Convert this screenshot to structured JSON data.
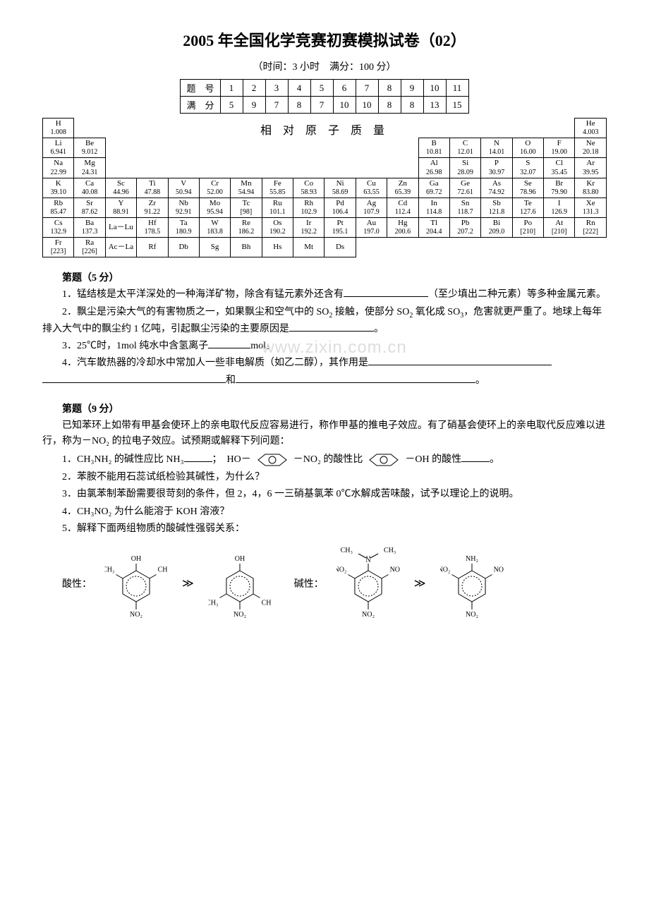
{
  "title": "2005 年全国化学竞赛初赛模拟试卷（02）",
  "subtitle": "（时间：3 小时　满分：100 分）",
  "score_table": {
    "row1": [
      "题　号",
      "1",
      "2",
      "3",
      "4",
      "5",
      "6",
      "7",
      "8",
      "9",
      "10",
      "11"
    ],
    "row2": [
      "满　分",
      "5",
      "9",
      "7",
      "8",
      "7",
      "10",
      "10",
      "8",
      "8",
      "13",
      "15"
    ]
  },
  "pt_label": "相 对 原 子 质 量",
  "periodic": {
    "r1": [
      {
        "s": "H",
        "m": "1.008"
      },
      null,
      null,
      null,
      null,
      null,
      null,
      null,
      null,
      null,
      null,
      null,
      null,
      null,
      null,
      null,
      null,
      {
        "s": "He",
        "m": "4.003"
      }
    ],
    "r2": [
      {
        "s": "Li",
        "m": "6.941"
      },
      {
        "s": "Be",
        "m": "9.012"
      },
      null,
      null,
      null,
      null,
      null,
      null,
      null,
      null,
      null,
      null,
      {
        "s": "B",
        "m": "10.81"
      },
      {
        "s": "C",
        "m": "12.01"
      },
      {
        "s": "N",
        "m": "14.01"
      },
      {
        "s": "O",
        "m": "16.00"
      },
      {
        "s": "F",
        "m": "19.00"
      },
      {
        "s": "Ne",
        "m": "20.18"
      }
    ],
    "r3": [
      {
        "s": "Na",
        "m": "22.99"
      },
      {
        "s": "Mg",
        "m": "24.31"
      },
      null,
      null,
      null,
      null,
      null,
      null,
      null,
      null,
      null,
      null,
      {
        "s": "Al",
        "m": "26.98"
      },
      {
        "s": "Si",
        "m": "28.09"
      },
      {
        "s": "P",
        "m": "30.97"
      },
      {
        "s": "S",
        "m": "32.07"
      },
      {
        "s": "Cl",
        "m": "35.45"
      },
      {
        "s": "Ar",
        "m": "39.95"
      }
    ],
    "r4": [
      {
        "s": "K",
        "m": "39.10"
      },
      {
        "s": "Ca",
        "m": "40.08"
      },
      {
        "s": "Sc",
        "m": "44.96"
      },
      {
        "s": "Ti",
        "m": "47.88"
      },
      {
        "s": "V",
        "m": "50.94"
      },
      {
        "s": "Cr",
        "m": "52.00"
      },
      {
        "s": "Mn",
        "m": "54.94"
      },
      {
        "s": "Fe",
        "m": "55.85"
      },
      {
        "s": "Co",
        "m": "58.93"
      },
      {
        "s": "Ni",
        "m": "58.69"
      },
      {
        "s": "Cu",
        "m": "63.55"
      },
      {
        "s": "Zn",
        "m": "65.39"
      },
      {
        "s": "Ga",
        "m": "69.72"
      },
      {
        "s": "Ge",
        "m": "72.61"
      },
      {
        "s": "As",
        "m": "74.92"
      },
      {
        "s": "Se",
        "m": "78.96"
      },
      {
        "s": "Br",
        "m": "79.90"
      },
      {
        "s": "Kr",
        "m": "83.80"
      }
    ],
    "r5": [
      {
        "s": "Rb",
        "m": "85.47"
      },
      {
        "s": "Sr",
        "m": "87.62"
      },
      {
        "s": "Y",
        "m": "88.91"
      },
      {
        "s": "Zr",
        "m": "91.22"
      },
      {
        "s": "Nb",
        "m": "92.91"
      },
      {
        "s": "Mo",
        "m": "95.94"
      },
      {
        "s": "Tc",
        "m": "[98]"
      },
      {
        "s": "Ru",
        "m": "101.1"
      },
      {
        "s": "Rh",
        "m": "102.9"
      },
      {
        "s": "Pd",
        "m": "106.4"
      },
      {
        "s": "Ag",
        "m": "107.9"
      },
      {
        "s": "Cd",
        "m": "112.4"
      },
      {
        "s": "In",
        "m": "114.8"
      },
      {
        "s": "Sn",
        "m": "118.7"
      },
      {
        "s": "Sb",
        "m": "121.8"
      },
      {
        "s": "Te",
        "m": "127.6"
      },
      {
        "s": "I",
        "m": "126.9"
      },
      {
        "s": "Xe",
        "m": "131.3"
      }
    ],
    "r6": [
      {
        "s": "Cs",
        "m": "132.9"
      },
      {
        "s": "Ba",
        "m": "137.3"
      },
      {
        "s": "La－Lu",
        "m": ""
      },
      {
        "s": "Hf",
        "m": "178.5"
      },
      {
        "s": "Ta",
        "m": "180.9"
      },
      {
        "s": "W",
        "m": "183.8"
      },
      {
        "s": "Re",
        "m": "186.2"
      },
      {
        "s": "Os",
        "m": "190.2"
      },
      {
        "s": "Ir",
        "m": "192.2"
      },
      {
        "s": "Pt",
        "m": "195.1"
      },
      {
        "s": "Au",
        "m": "197.0"
      },
      {
        "s": "Hg",
        "m": "200.6"
      },
      {
        "s": "Tl",
        "m": "204.4"
      },
      {
        "s": "Pb",
        "m": "207.2"
      },
      {
        "s": "Bi",
        "m": "209.0"
      },
      {
        "s": "Po",
        "m": "[210]"
      },
      {
        "s": "At",
        "m": "[210]"
      },
      {
        "s": "Rn",
        "m": "[222]"
      }
    ],
    "r7": [
      {
        "s": "Fr",
        "m": "[223]"
      },
      {
        "s": "Ra",
        "m": "[226]"
      },
      {
        "s": "Ac－La",
        "m": ""
      },
      {
        "s": "Rf",
        "m": ""
      },
      {
        "s": "Db",
        "m": ""
      },
      {
        "s": "Sg",
        "m": ""
      },
      {
        "s": "Bh",
        "m": ""
      },
      {
        "s": "Hs",
        "m": ""
      },
      {
        "s": "Mt",
        "m": ""
      },
      {
        "s": "Ds",
        "m": ""
      },
      null,
      null,
      null,
      null,
      null,
      null,
      null,
      null
    ]
  },
  "q1": {
    "header": "第题（5 分）",
    "p1a": "1．锰结核是太平洋深处的一种海洋矿物，除含有锰元素外还含有",
    "p1b": "（至少填出二种元素）等多种金属元素。",
    "p2a": "2．飘尘是污染大气的有害物质之一，如果飘尘和空气中的 SO",
    "p2b": " 接触，使部分 SO",
    "p2c": " 氧化成 SO",
    "p2d": "，危害就更严重了。地球上每年排入大气中的飘尘约 1 亿吨，引起飘尘污染的主要原因是",
    "p2e": "。",
    "p3a": "3．25℃时，1mol 纯水中含氢离子",
    "p3b": "mol。",
    "p4a": "4．汽车散热器的冷却水中常加人一些非电解质（如乙二醇），其作用是",
    "p4b": "和",
    "p4c": "。"
  },
  "q2": {
    "header": "第题（9 分）",
    "intro": "已知苯环上如带有甲基会使环上的亲电取代反应容易进行，称作甲基的推电子效应。有了硝基会使环上的亲电取代反应难以进行，称为－NO₂ 的拉电子效应。试预期或解释下列问题：",
    "p1a": "1．CH₃NH₂ 的碱性应比 NH₃",
    "p1b": "；　HO－",
    "p1c": "－NO₂ 的酸性比",
    "p1d": "－OH 的酸性",
    "p1e": "。",
    "p2": "2．苯胺不能用石蕊试纸检验其碱性，为什么？",
    "p3": "3．由氯苯制苯酚需要很苛刻的条件，但 2，4，6 一三硝基氯苯 0℃水解成苦味酸，试予以理论上的说明。",
    "p4": "4．CH₃NO₂ 为什么能溶于 KOH 溶液？",
    "p5": "5．解释下面两组物质的酸碱性强弱关系：",
    "acid_label": "酸性：",
    "base_label": "碱性：",
    "gt": "≫"
  },
  "mol": {
    "a1": {
      "top": "OH",
      "r2": "CH₃",
      "r6": "CH₃",
      "r4": "NO₂"
    },
    "a2": {
      "top": "OH",
      "r3": "CH₃",
      "r5": "CH₃",
      "r4": "NO₂"
    },
    "b1": {
      "top": "N",
      "tl": "CH₃",
      "tr": "CH₃",
      "r2": "NO₂",
      "r6": "NO₂",
      "r4": "NO₂"
    },
    "b2": {
      "top": "NH₂",
      "r2": "NO₂",
      "r6": "NO₂",
      "r4": "NO₂"
    }
  }
}
